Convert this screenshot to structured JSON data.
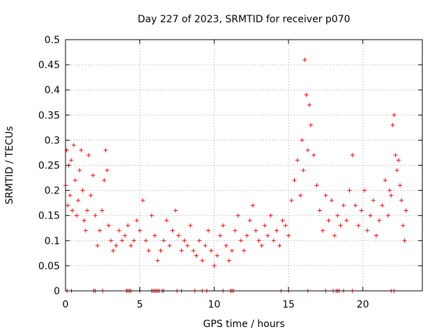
{
  "chart_data": {
    "type": "scatter",
    "title": "Day 227 of 2023, SRMTID for receiver p070",
    "xlabel": "GPS time / hours",
    "ylabel": "SRMTID / TECUs",
    "xlim": [
      0,
      24
    ],
    "ylim": [
      0,
      0.5
    ],
    "x_ticks": [
      0,
      5,
      10,
      15,
      20
    ],
    "x_tick_labels": [
      "0",
      "5",
      "10",
      "15",
      "20"
    ],
    "y_ticks": [
      0,
      0.05,
      0.1,
      0.15,
      0.2,
      0.25,
      0.3,
      0.35,
      0.4,
      0.45,
      0.5
    ],
    "y_tick_labels": [
      "0",
      "0.05",
      "0.1",
      "0.15",
      "0.2",
      "0.25",
      "0.3",
      "0.35",
      "0.4",
      "0.45",
      "0.5"
    ],
    "grid": true,
    "marker": "+",
    "color": "#ff0000",
    "series": [
      {
        "name": "SRMTID",
        "x": [
          0.0,
          0.08,
          0.15,
          0.22,
          0.3,
          0.38,
          0.45,
          0.55,
          0.65,
          0.75,
          0.85,
          0.95,
          1.05,
          1.15,
          1.25,
          1.35,
          1.45,
          1.55,
          1.7,
          1.85,
          2.0,
          2.15,
          2.3,
          2.45,
          2.6,
          2.7,
          2.8,
          2.9,
          3.05,
          3.2,
          3.4,
          3.6,
          3.8,
          4.0,
          4.2,
          4.4,
          4.6,
          4.8,
          5.0,
          5.2,
          5.4,
          5.6,
          5.8,
          6.0,
          6.2,
          6.4,
          6.6,
          6.8,
          7.0,
          7.2,
          7.4,
          7.6,
          7.8,
          8.0,
          8.2,
          8.4,
          8.6,
          8.8,
          9.0,
          9.2,
          9.4,
          9.6,
          9.8,
          10.0,
          10.2,
          10.4,
          10.6,
          10.8,
          11.0,
          11.2,
          11.4,
          11.6,
          11.8,
          12.0,
          12.2,
          12.4,
          12.6,
          12.8,
          13.0,
          13.2,
          13.4,
          13.6,
          13.8,
          14.0,
          14.2,
          14.4,
          14.6,
          14.8,
          15.0,
          15.2,
          15.4,
          15.6,
          15.8,
          15.9,
          16.0,
          16.1,
          16.2,
          16.3,
          16.4,
          16.5,
          16.7,
          16.9,
          17.1,
          17.3,
          17.5,
          17.7,
          17.9,
          18.1,
          18.3,
          18.5,
          18.7,
          18.9,
          19.1,
          19.3,
          19.5,
          19.7,
          19.9,
          20.1,
          20.3,
          20.5,
          20.7,
          20.9,
          21.1,
          21.3,
          21.5,
          21.7,
          21.8,
          21.9,
          22.0,
          22.1,
          22.2,
          22.3,
          22.4,
          22.5,
          22.6,
          22.7,
          22.8,
          22.9
        ],
        "y": [
          0.21,
          0.28,
          0.17,
          0.25,
          0.19,
          0.26,
          0.16,
          0.29,
          0.22,
          0.15,
          0.18,
          0.24,
          0.28,
          0.2,
          0.14,
          0.12,
          0.16,
          0.27,
          0.19,
          0.23,
          0.15,
          0.09,
          0.12,
          0.16,
          0.22,
          0.28,
          0.24,
          0.13,
          0.1,
          0.08,
          0.09,
          0.12,
          0.1,
          0.11,
          0.13,
          0.09,
          0.1,
          0.14,
          0.12,
          0.18,
          0.1,
          0.08,
          0.15,
          0.11,
          0.06,
          0.08,
          0.1,
          0.14,
          0.09,
          0.12,
          0.16,
          0.11,
          0.08,
          0.1,
          0.09,
          0.13,
          0.08,
          0.07,
          0.1,
          0.06,
          0.09,
          0.12,
          0.08,
          0.05,
          0.07,
          0.11,
          0.13,
          0.09,
          0.06,
          0.08,
          0.12,
          0.15,
          0.1,
          0.08,
          0.11,
          0.14,
          0.17,
          0.12,
          0.1,
          0.09,
          0.13,
          0.11,
          0.15,
          0.1,
          0.12,
          0.09,
          0.14,
          0.13,
          0.11,
          0.18,
          0.22,
          0.26,
          0.19,
          0.3,
          0.24,
          0.46,
          0.39,
          0.28,
          0.37,
          0.33,
          0.27,
          0.21,
          0.16,
          0.12,
          0.19,
          0.14,
          0.18,
          0.11,
          0.15,
          0.13,
          0.17,
          0.14,
          0.2,
          0.27,
          0.17,
          0.13,
          0.16,
          0.2,
          0.12,
          0.15,
          0.18,
          0.11,
          0.14,
          0.17,
          0.22,
          0.15,
          0.2,
          0.19,
          0.33,
          0.35,
          0.27,
          0.24,
          0.26,
          0.21,
          0.18,
          0.13,
          0.1,
          0.16
        ]
      }
    ],
    "baseline_zero_x": [
      0.1,
      0.4,
      1.9,
      2.0,
      2.5,
      4.1,
      4.2,
      4.3,
      4.4,
      5.0,
      5.8,
      5.9,
      6.0,
      6.1,
      6.2,
      6.3,
      6.5,
      6.6,
      7.5,
      7.8,
      8.7,
      9.2,
      9.5,
      10.6,
      11.1,
      11.2,
      11.3,
      14.5,
      15.0,
      16.3,
      17.5,
      18.0,
      18.2,
      18.3,
      18.4,
      18.7,
      19.3,
      21.9,
      22.1
    ]
  }
}
